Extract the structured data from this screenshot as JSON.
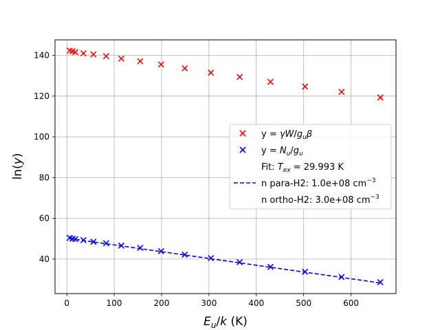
{
  "chart_data": {
    "type": "scatter",
    "xlabel_main": "E",
    "xlabel_sub": "u",
    "xlabel_div": "/",
    "xlabel_var": "k",
    "xlabel_unit": " (K)",
    "ylabel_pre": "ln(",
    "ylabel_var": "y",
    "ylabel_post": ")",
    "xlim": [
      -25,
      695
    ],
    "ylim": [
      23.1,
      147.6
    ],
    "xticks": [
      0,
      100,
      200,
      300,
      400,
      500,
      600
    ],
    "yticks": [
      40,
      60,
      80,
      100,
      120,
      140
    ],
    "grid": true,
    "legend_position": "center-right",
    "series": [
      {
        "name": "y = γW/g_uβ",
        "kind": "scatter",
        "marker": "x",
        "color": "#ff0000",
        "x": [
          6,
          12,
          18,
          35,
          56,
          83,
          115,
          155,
          199,
          249,
          304,
          365,
          430,
          503,
          580,
          662
        ],
        "y": [
          142.3,
          142.0,
          141.6,
          141.0,
          140.5,
          139.6,
          138.4,
          137.1,
          135.5,
          133.6,
          131.5,
          129.4,
          127.0,
          124.7,
          122.1,
          119.3
        ]
      },
      {
        "name": "y = N_u/g_u",
        "kind": "scatter",
        "marker": "x",
        "color": "#0000ff",
        "x": [
          6,
          12,
          18,
          35,
          56,
          83,
          115,
          155,
          199,
          249,
          304,
          365,
          430,
          503,
          580,
          662
        ],
        "y": [
          50.4,
          50.0,
          49.8,
          49.3,
          48.5,
          47.8,
          46.6,
          45.5,
          43.9,
          42.2,
          40.5,
          38.5,
          36.2,
          33.8,
          31.2,
          28.7
        ]
      },
      {
        "name": "n para-H2: 1.0e+08 cm⁻³",
        "kind": "line",
        "style": "dashed",
        "color": "#0000ff",
        "x": [
          6,
          662
        ],
        "y": [
          50.1,
          28.3
        ]
      }
    ]
  },
  "legend": {
    "entries": [
      {
        "prefix": "y = ",
        "italic": "γW",
        "mid": "/",
        "italic2": "g",
        "sub": "u",
        "italic3": "β",
        "marker": "red-x"
      },
      {
        "prefix": "y = ",
        "italic": "N",
        "sub": "u",
        "mid": "/",
        "italic2": "g",
        "sub2": "u",
        "marker": "blue-x"
      },
      {
        "text": "Fit: ",
        "italic": "T",
        "sub": "ex",
        "rest": " = 29.993 K",
        "marker": "none"
      },
      {
        "text": "n para-H2: 1.0e+08 cm",
        "sup": "−3",
        "marker": "blue-dash"
      },
      {
        "text": "n ortho-H2: 3.0e+08 cm",
        "sup": "−3",
        "marker": "none"
      }
    ]
  }
}
